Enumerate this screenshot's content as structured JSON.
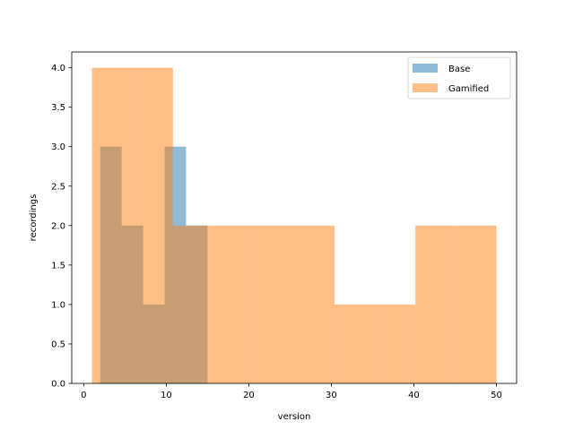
{
  "chart_data": {
    "type": "bar",
    "subtype": "histogram",
    "xlabel": "version",
    "ylabel": "recordings",
    "xlim": [
      -1.45,
      52.45
    ],
    "ylim": [
      0,
      4.2
    ],
    "xticks": [
      0,
      10,
      20,
      30,
      40,
      50
    ],
    "yticks": [
      0.0,
      0.5,
      1.0,
      1.5,
      2.0,
      2.5,
      3.0,
      3.5,
      4.0
    ],
    "ytick_labels": [
      "0.0",
      "0.5",
      "1.0",
      "1.5",
      "2.0",
      "2.5",
      "3.0",
      "3.5",
      "4.0"
    ],
    "grid": false,
    "legend_position": "upper right",
    "series": [
      {
        "name": "Base",
        "color": "#1f77b4",
        "opacity": 0.5,
        "bins": [
          {
            "x0": 2.0,
            "x1": 4.6,
            "value": 3
          },
          {
            "x0": 4.6,
            "x1": 7.2,
            "value": 2
          },
          {
            "x0": 7.2,
            "x1": 9.8,
            "value": 1
          },
          {
            "x0": 9.8,
            "x1": 12.4,
            "value": 3
          },
          {
            "x0": 12.4,
            "x1": 15.0,
            "value": 2
          }
        ]
      },
      {
        "name": "Gamified",
        "color": "#ff7f0e",
        "opacity": 0.5,
        "bins": [
          {
            "x0": 1.0,
            "x1": 5.9,
            "value": 4
          },
          {
            "x0": 5.9,
            "x1": 10.8,
            "value": 4
          },
          {
            "x0": 10.8,
            "x1": 15.7,
            "value": 2
          },
          {
            "x0": 15.7,
            "x1": 20.6,
            "value": 2
          },
          {
            "x0": 20.6,
            "x1": 25.5,
            "value": 2
          },
          {
            "x0": 25.5,
            "x1": 30.4,
            "value": 2
          },
          {
            "x0": 30.4,
            "x1": 35.3,
            "value": 1
          },
          {
            "x0": 35.3,
            "x1": 40.2,
            "value": 1
          },
          {
            "x0": 40.2,
            "x1": 45.1,
            "value": 2
          },
          {
            "x0": 45.1,
            "x1": 50.0,
            "value": 2
          }
        ]
      }
    ]
  }
}
